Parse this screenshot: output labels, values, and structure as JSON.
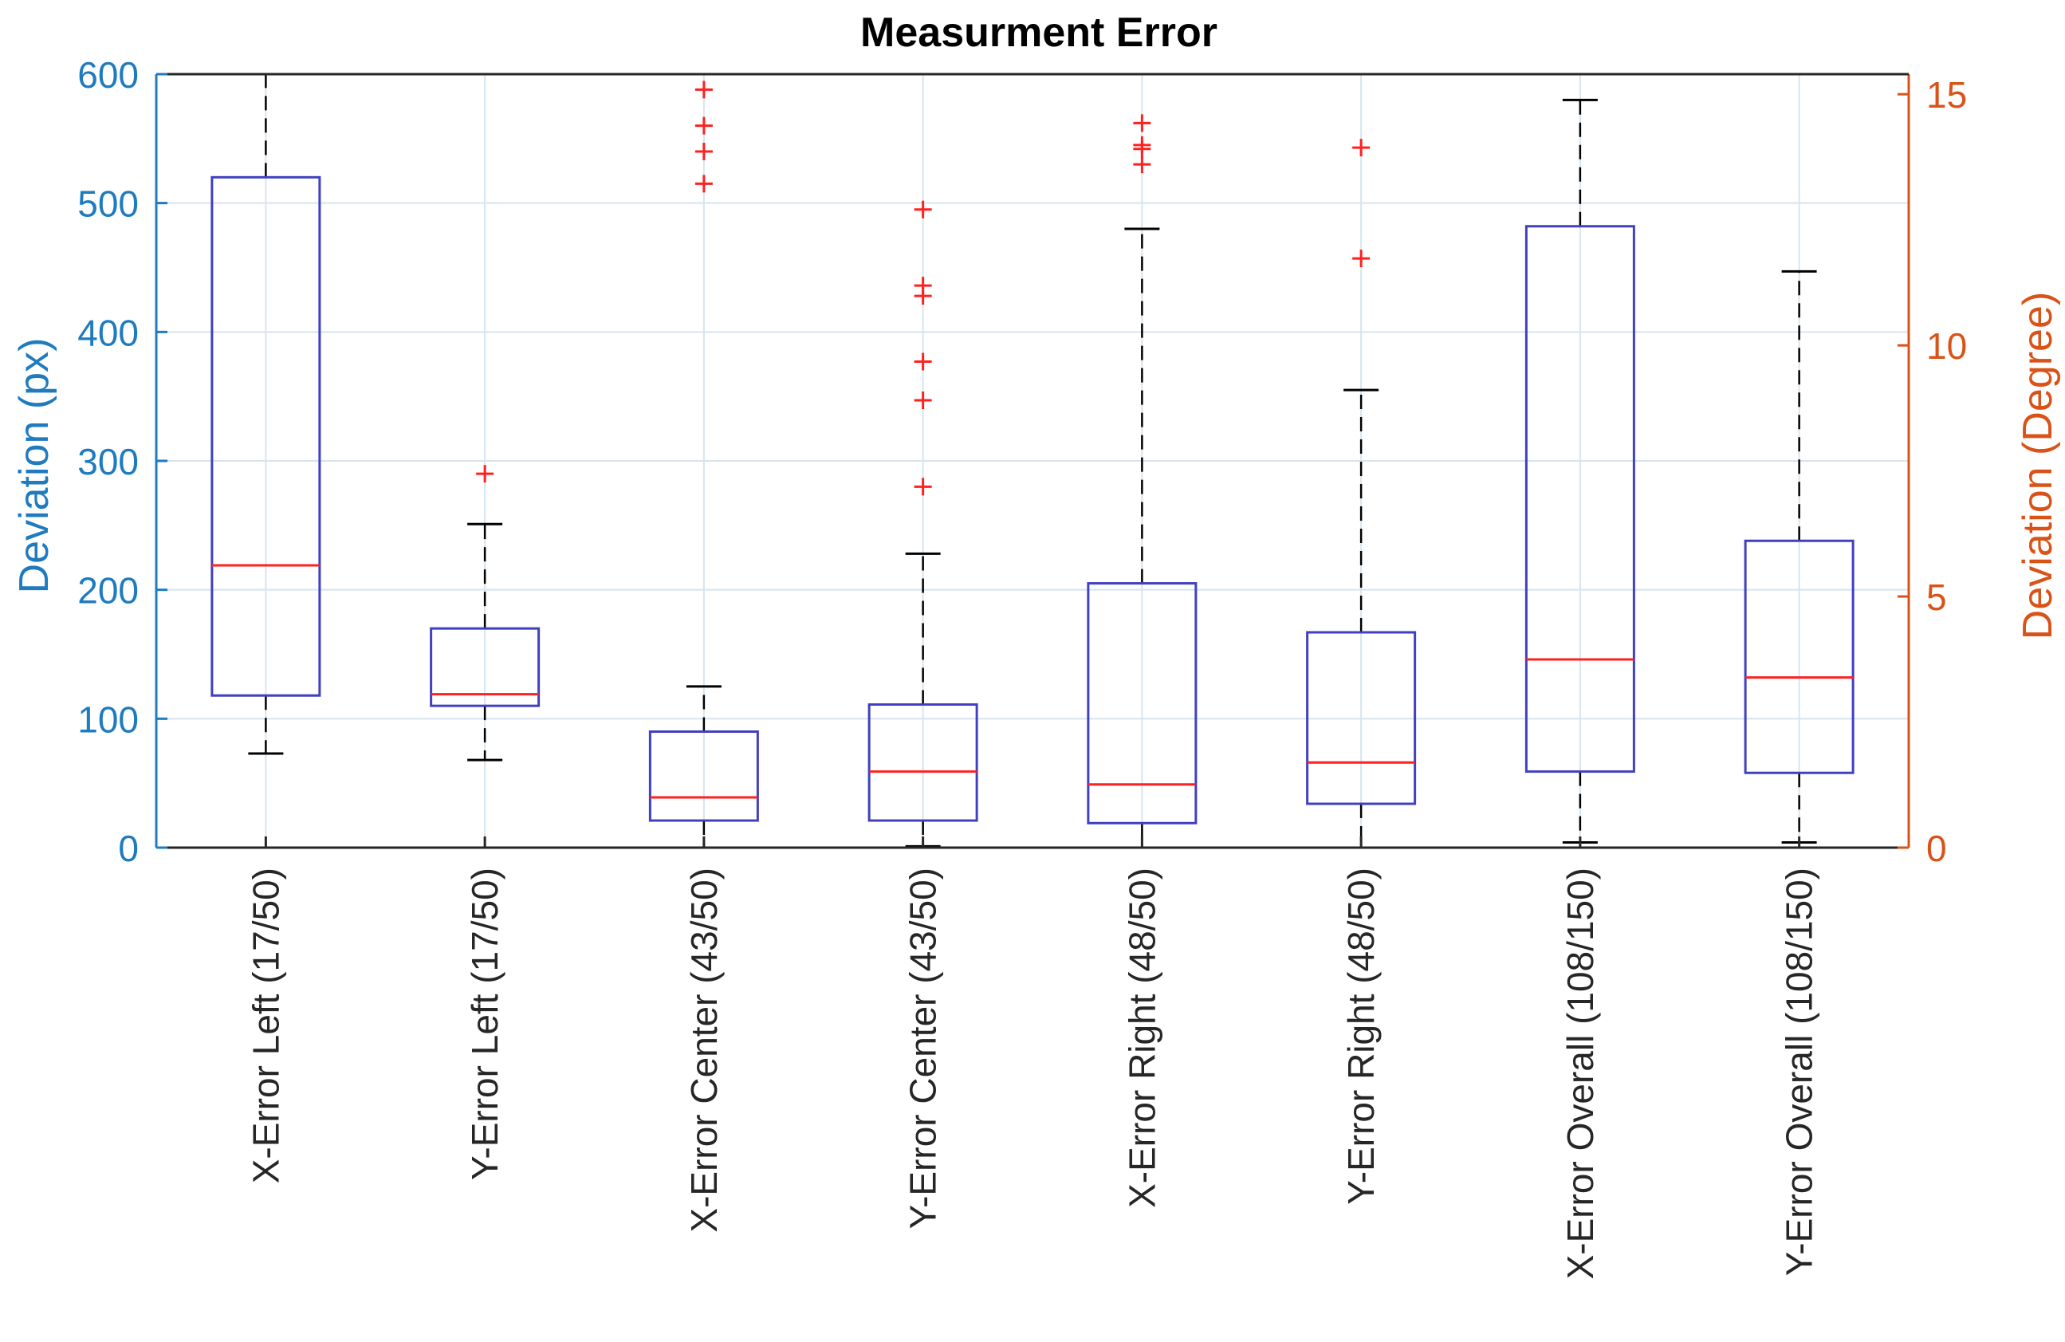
{
  "chart_data": {
    "type": "box",
    "title": "Measurment Error",
    "ylabel_left": "Deviation (px)",
    "ylabel_right": "Deviation (Degree)",
    "ylim_left": [
      0,
      600
    ],
    "yticks_left": [
      0,
      100,
      200,
      300,
      400,
      500,
      600
    ],
    "ylim_right": [
      0,
      15.4
    ],
    "yticks_right": [
      0,
      5,
      10,
      15
    ],
    "grid": true,
    "colors": {
      "left_axis": "#1f7bbf",
      "right_axis": "#d95319",
      "box": "#4040c0",
      "median": "#ff2020",
      "outlier": "#ff2020",
      "whisker": "#000000",
      "grid": "#d6e4f0"
    },
    "categories": [
      "X-Error Left (17/50)",
      "Y-Error Left (17/50)",
      "X-Error Center (43/50)",
      "Y-Error Center (43/50)",
      "X-Error Right (48/50)",
      "Y-Error Right (48/50)",
      "X-Error Overall (108/150)",
      "Y-Error Overall (108/150)"
    ],
    "boxes": [
      {
        "whisker_low": 73,
        "q1": 118,
        "median": 219,
        "q3": 520,
        "whisker_high": 600,
        "outliers": []
      },
      {
        "whisker_low": 68,
        "q1": 110,
        "median": 119,
        "q3": 170,
        "whisker_high": 251,
        "outliers": [
          290
        ]
      },
      {
        "whisker_low": 0,
        "q1": 21,
        "median": 39,
        "q3": 90,
        "whisker_high": 125,
        "outliers": [
          515,
          540,
          560,
          588
        ]
      },
      {
        "whisker_low": 1,
        "q1": 21,
        "median": 59,
        "q3": 111,
        "whisker_high": 228,
        "outliers": [
          280,
          347,
          377,
          428,
          436,
          495
        ]
      },
      {
        "whisker_low": 0,
        "q1": 19,
        "median": 49,
        "q3": 205,
        "whisker_high": 480,
        "outliers": [
          530,
          542,
          545,
          562
        ]
      },
      {
        "whisker_low": 0,
        "q1": 34,
        "median": 66,
        "q3": 167,
        "whisker_high": 355,
        "outliers": [
          457,
          543
        ]
      },
      {
        "whisker_low": 4,
        "q1": 59,
        "median": 146,
        "q3": 482,
        "whisker_high": 580,
        "outliers": []
      },
      {
        "whisker_low": 4,
        "q1": 58,
        "median": 132,
        "q3": 238,
        "whisker_high": 447,
        "outliers": []
      }
    ]
  }
}
